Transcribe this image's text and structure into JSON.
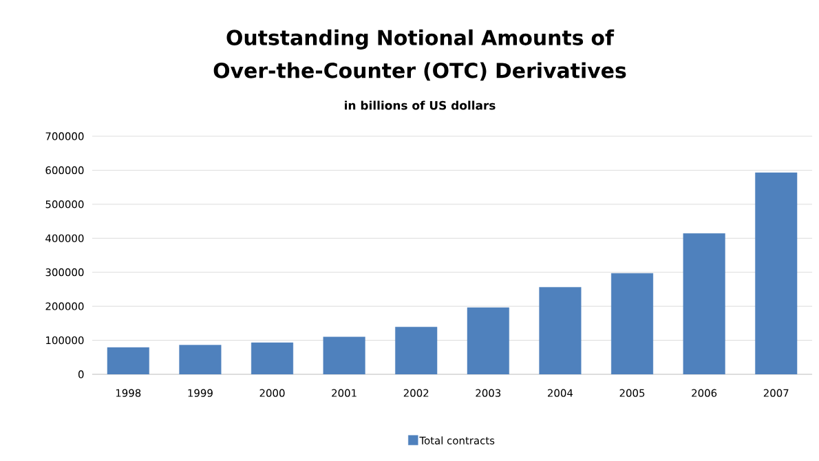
{
  "chart_data": {
    "type": "bar",
    "title": "Outstanding Notional Amounts of Over-the-Counter (OTC) Derivatives",
    "subtitle": "in billions of US dollars",
    "categories": [
      "1998",
      "1999",
      "2000",
      "2001",
      "2002",
      "2003",
      "2004",
      "2005",
      "2006",
      "2007"
    ],
    "series": [
      {
        "name": "Total contracts",
        "color": "#4f81bd",
        "values": [
          79000,
          86000,
          93000,
          110000,
          139000,
          196000,
          256000,
          297000,
          414000,
          593000
        ]
      }
    ],
    "ylim": [
      0,
      700000
    ],
    "yticks": [
      0,
      100000,
      200000,
      300000,
      400000,
      500000,
      600000,
      700000
    ],
    "grid": "y",
    "legend": "bottom"
  }
}
